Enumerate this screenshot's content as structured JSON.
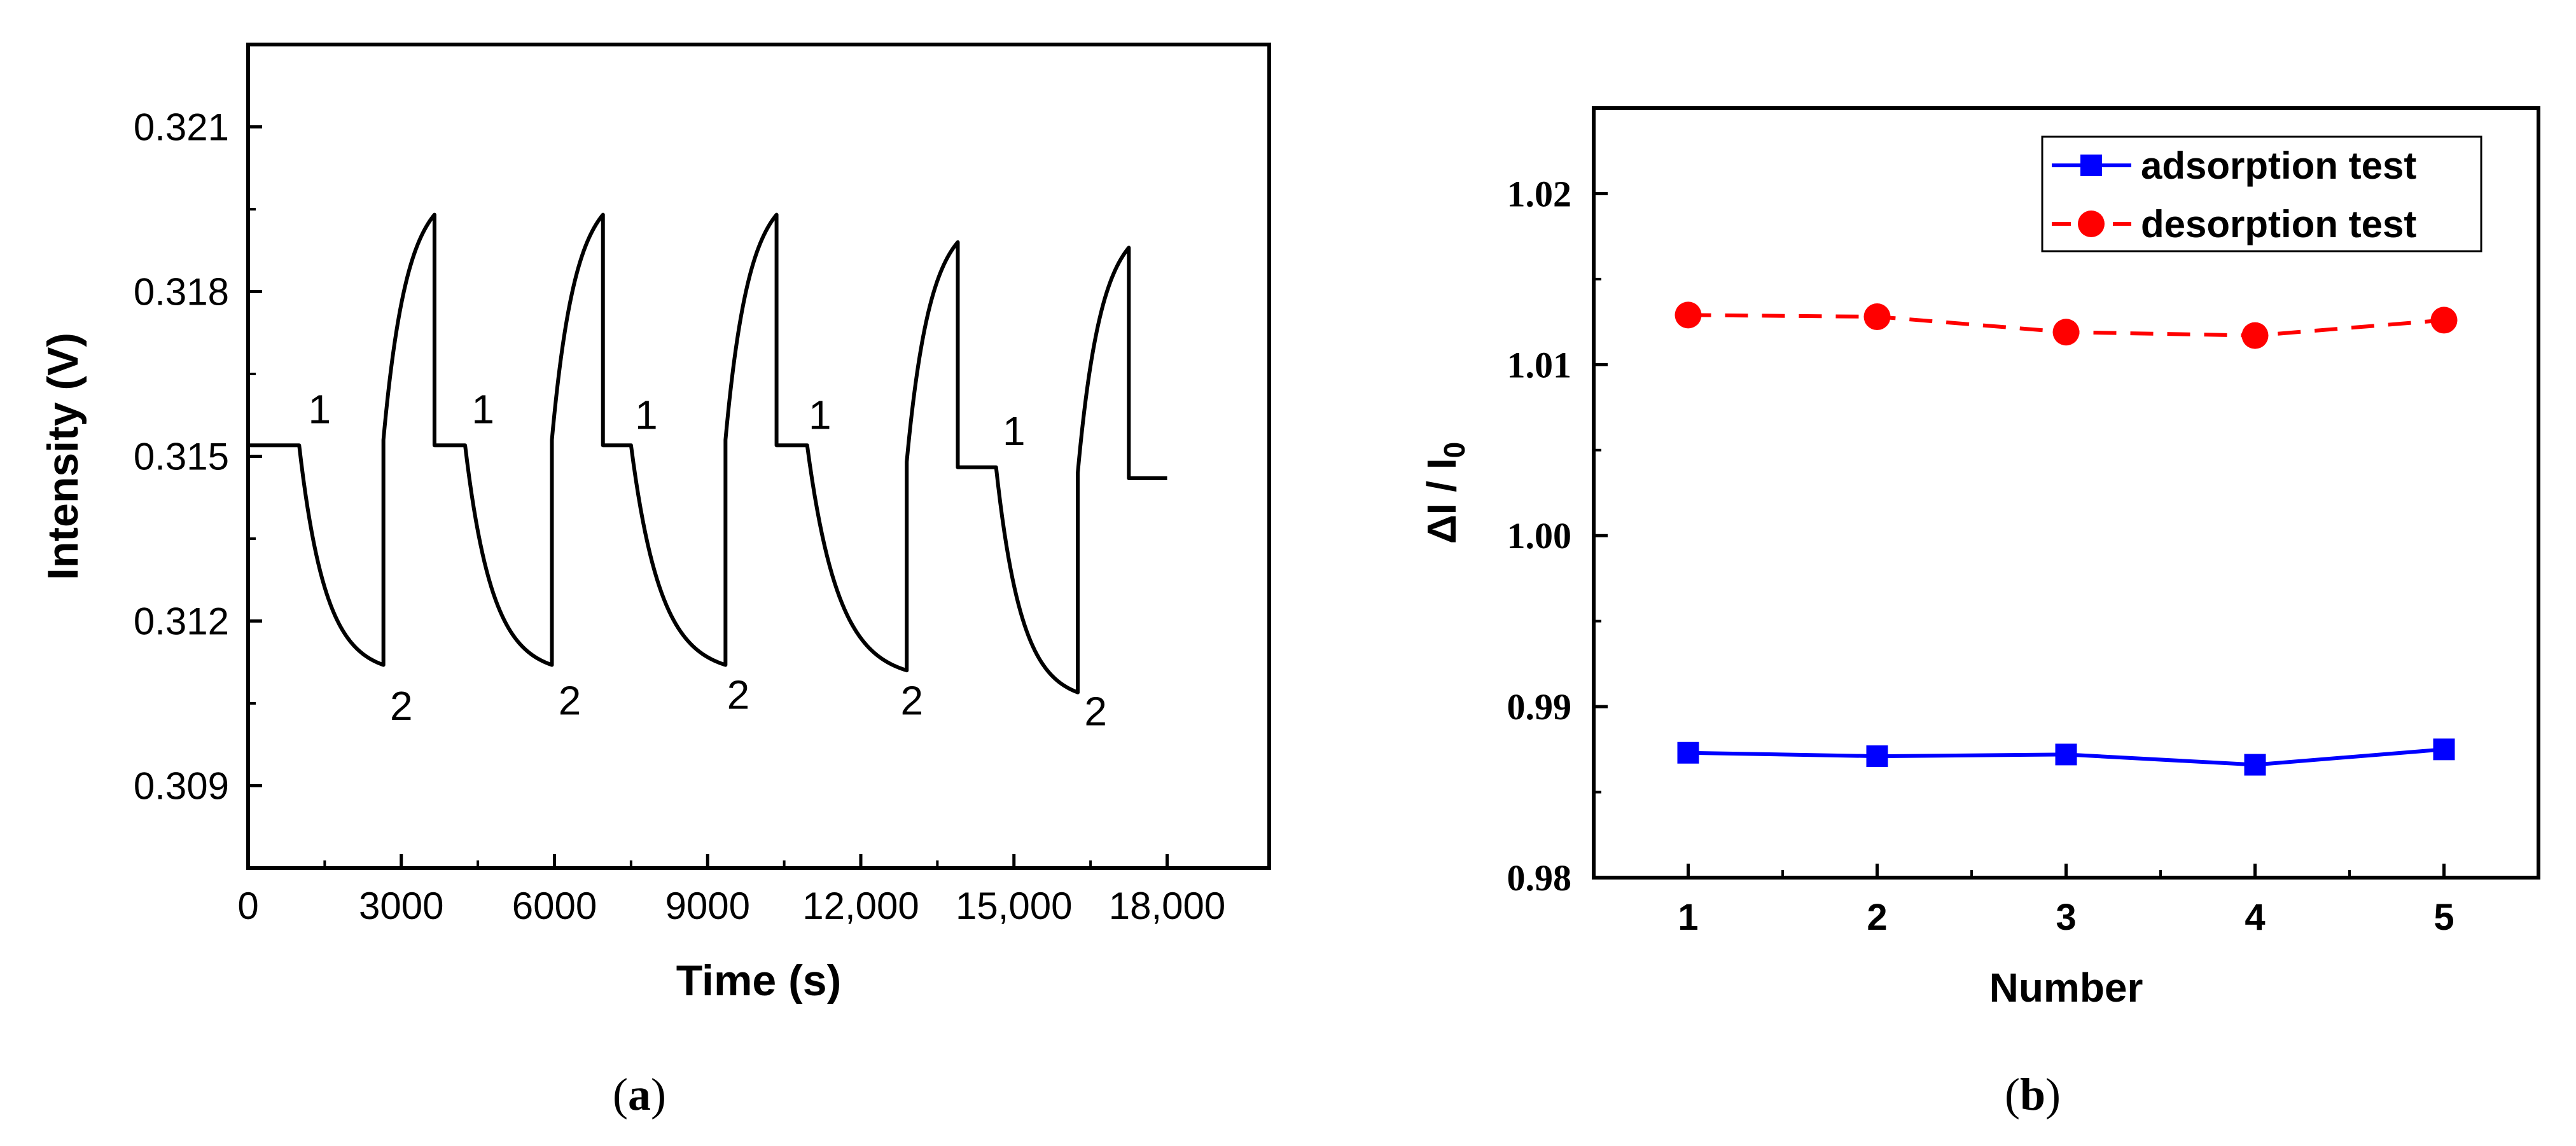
{
  "chart_data": [
    {
      "id": "a",
      "type": "line",
      "caption": {
        "open": "(",
        "letter": "a",
        "close": ")"
      },
      "xlabel": "Time (s)",
      "ylabel": "Intensity (V)",
      "xlim": [
        0,
        20000
      ],
      "ylim": [
        0.3075,
        0.3225
      ],
      "x_ticks": [
        0,
        3000,
        6000,
        9000,
        12000,
        15000,
        18000
      ],
      "x_tick_labels": [
        "0",
        "3000",
        "6000",
        "9000",
        "12,000",
        "15,000",
        "18,000"
      ],
      "y_ticks": [
        0.309,
        0.312,
        0.315,
        0.318,
        0.321
      ],
      "y_tick_labels": [
        "0.309",
        "0.312",
        "0.315",
        "0.318",
        "0.321"
      ],
      "baseline_start": 0.3152,
      "cycles": [
        {
          "adsorb_start": 1000,
          "desorb_start": 2650,
          "desorb_end": 3650,
          "min": 0.3112,
          "max": 0.3194,
          "recover": 0.3152
        },
        {
          "adsorb_start": 4250,
          "desorb_start": 5950,
          "desorb_end": 6950,
          "min": 0.3112,
          "max": 0.3194,
          "recover": 0.3152
        },
        {
          "adsorb_start": 7500,
          "desorb_start": 9350,
          "desorb_end": 10350,
          "min": 0.3112,
          "max": 0.3194,
          "recover": 0.3152
        },
        {
          "adsorb_start": 10950,
          "desorb_start": 12900,
          "desorb_end": 13900,
          "min": 0.3111,
          "max": 0.3189,
          "recover": 0.3148
        },
        {
          "adsorb_start": 14650,
          "desorb_start": 16250,
          "desorb_end": 17250,
          "min": 0.3107,
          "max": 0.3188,
          "recover": 0.3146
        }
      ],
      "end_time": 18000,
      "annotations": [
        {
          "text": "1",
          "x": 1400,
          "y": 0.3156
        },
        {
          "text": "1",
          "x": 4600,
          "y": 0.3156
        },
        {
          "text": "1",
          "x": 7800,
          "y": 0.3155
        },
        {
          "text": "1",
          "x": 11200,
          "y": 0.3155
        },
        {
          "text": "1",
          "x": 15000,
          "y": 0.3152
        },
        {
          "text": "2",
          "x": 3000,
          "y": 0.3102
        },
        {
          "text": "2",
          "x": 6300,
          "y": 0.3103
        },
        {
          "text": "2",
          "x": 9600,
          "y": 0.3104
        },
        {
          "text": "2",
          "x": 13000,
          "y": 0.3103
        },
        {
          "text": "2",
          "x": 16600,
          "y": 0.3101
        }
      ]
    },
    {
      "id": "b",
      "type": "line",
      "caption": {
        "open": "(",
        "letter": "b",
        "close": ")"
      },
      "xlabel": "Number",
      "ylabel": {
        "main": "ΔI / I",
        "sub": "0"
      },
      "xlim": [
        0.5,
        5.5
      ],
      "ylim": [
        0.98,
        1.025
      ],
      "x_ticks": [
        1,
        2,
        3,
        4,
        5
      ],
      "x_tick_labels": [
        "1",
        "2",
        "3",
        "4",
        "5"
      ],
      "y_ticks": [
        0.98,
        0.99,
        1.0,
        1.01,
        1.02
      ],
      "y_tick_labels": [
        "0.98",
        "0.99",
        "1.00",
        "1.01",
        "1.02"
      ],
      "series": [
        {
          "name": "adsorption test",
          "color": "#0000ff",
          "marker": "square",
          "dash": "solid",
          "x": [
            1,
            2,
            3,
            4,
            5
          ],
          "values": [
            0.9873,
            0.9871,
            0.9872,
            0.9866,
            0.9875
          ]
        },
        {
          "name": "desorption test",
          "color": "#ff0000",
          "marker": "circle",
          "dash": "dashed",
          "x": [
            1,
            2,
            3,
            4,
            5
          ],
          "values": [
            1.0129,
            1.0128,
            1.0119,
            1.0117,
            1.0126
          ]
        }
      ],
      "legend_position": "top-right"
    }
  ]
}
